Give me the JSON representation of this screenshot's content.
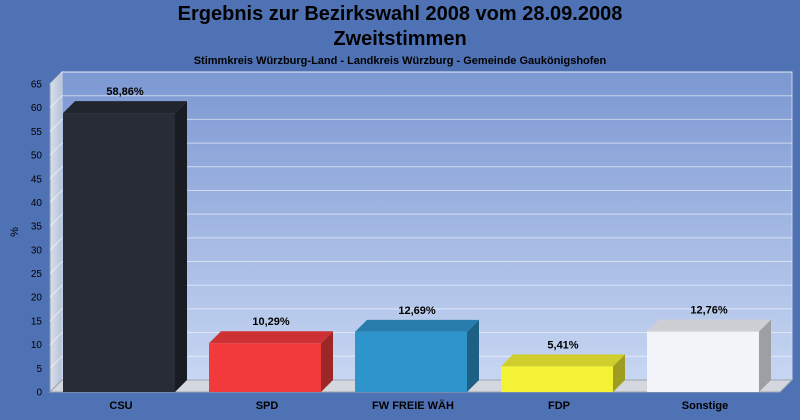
{
  "chart_data": {
    "type": "bar",
    "title": "Ergebnis zur Bezirkswahl 2008 vom 28.09.2008",
    "subtitle_line2": "Zweitstimmen",
    "subtitle": "Stimmkreis Würzburg-Land - Landkreis Würzburg - Gemeinde Gaukönigshofen",
    "ylabel": "%",
    "xlabel": "",
    "ylim": [
      0,
      65
    ],
    "yticks": [
      0,
      5,
      10,
      15,
      20,
      25,
      30,
      35,
      40,
      45,
      50,
      55,
      60,
      65
    ],
    "grid": true,
    "categories": [
      "CSU",
      "SPD",
      "FW FREIE WÄH",
      "FDP",
      "Sonstige"
    ],
    "values": [
      58.86,
      10.29,
      12.69,
      5.41,
      12.76
    ],
    "value_labels": [
      "58,86%",
      "10,29%",
      "12,69%",
      "5,41%",
      "12,76%"
    ],
    "colors": [
      "#272c36",
      "#f23a3c",
      "#2e94cc",
      "#f3f234",
      "#f2f4fa"
    ]
  }
}
